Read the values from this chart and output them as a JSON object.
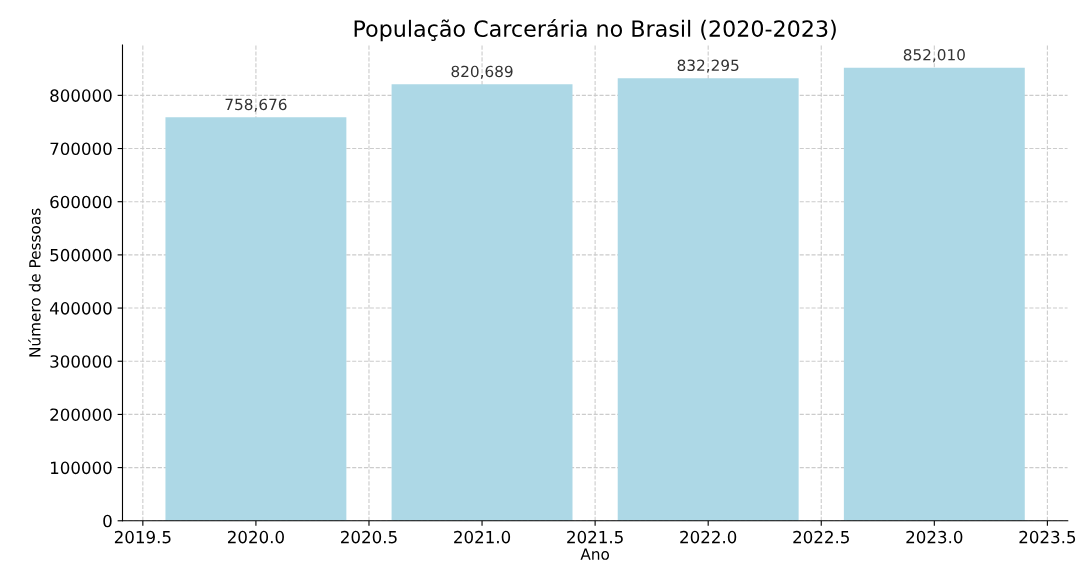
{
  "chart_data": {
    "type": "bar",
    "title": "População Carcerária no Brasil (2020-2023)",
    "xlabel": "Ano",
    "ylabel": "Número de Pessoas",
    "x": [
      2020,
      2021,
      2022,
      2023
    ],
    "values": [
      758676,
      820689,
      832295,
      852010
    ],
    "value_labels": [
      "758,676",
      "820,689",
      "832,295",
      "852,010"
    ],
    "color": "#add8e6",
    "xlim": [
      2019.41,
      2023.59
    ],
    "xticks": [
      {
        "value": 2019.5,
        "label": "2019.5"
      },
      {
        "value": 2020.0,
        "label": "2020.0"
      },
      {
        "value": 2020.5,
        "label": "2020.5"
      },
      {
        "value": 2021.0,
        "label": "2021.0"
      },
      {
        "value": 2021.5,
        "label": "2021.5"
      },
      {
        "value": 2022.0,
        "label": "2022.0"
      },
      {
        "value": 2022.5,
        "label": "2022.5"
      },
      {
        "value": 2023.0,
        "label": "2023.0"
      },
      {
        "value": 2023.5,
        "label": "2023.5"
      }
    ],
    "ylim": [
      0,
      894610
    ],
    "yticks": [
      0,
      100000,
      200000,
      300000,
      400000,
      500000,
      600000,
      700000,
      800000
    ],
    "grid": true,
    "line_style": "dashed"
  }
}
